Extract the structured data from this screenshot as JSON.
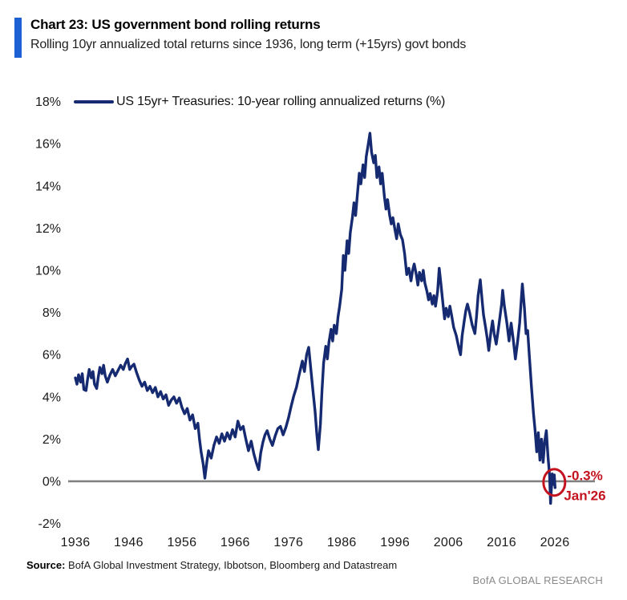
{
  "header": {
    "title": "Chart 23: US government bond rolling returns",
    "subtitle": "Rolling 10yr annualized total returns since 1936, long term (+15yrs) govt bonds"
  },
  "legend": {
    "label": "US 15yr+ Treasuries: 10-year rolling annualized returns (%)"
  },
  "footer": {
    "source_label": "Source:",
    "source_text": " BofA Global Investment Strategy, Ibbotson, Bloomberg and Datastream",
    "brand": "BofA GLOBAL RESEARCH"
  },
  "colors": {
    "line": "#152a70",
    "accent_bar": "#1c60d4",
    "annotation": "#c4121f",
    "zero_line": "#7f7f7f",
    "axis_text": "#1a1a1a",
    "brand_text": "#8a8a8a"
  },
  "chart_data": {
    "type": "line",
    "title": "US government bond rolling returns",
    "xlabel": "",
    "ylabel": "",
    "xlim": [
      1936,
      2027
    ],
    "ylim": [
      -2,
      18
    ],
    "grid": false,
    "legend_position": "top-left",
    "x_ticks": [
      1936,
      1946,
      1956,
      1966,
      1976,
      1986,
      1996,
      2006,
      2016,
      2026
    ],
    "y_tick_labels": [
      "18%",
      "16%",
      "14%",
      "12%",
      "10%",
      "8%",
      "6%",
      "4%",
      "2%",
      "0%",
      "-2%"
    ],
    "zero_line": true,
    "annotation": {
      "x_year": 2025.9,
      "y_value": -0.05,
      "value_label": "-0.3%",
      "date_label": "Jan'26"
    },
    "series": [
      {
        "name": "US 15yr+ Treasuries: 10-year rolling annualized returns (%)",
        "points": [
          [
            1936.0,
            4.9
          ],
          [
            1936.3,
            4.6
          ],
          [
            1936.6,
            5.05
          ],
          [
            1937.0,
            4.7
          ],
          [
            1937.3,
            5.1
          ],
          [
            1937.6,
            4.35
          ],
          [
            1938.0,
            4.3
          ],
          [
            1938.3,
            4.85
          ],
          [
            1938.6,
            5.3
          ],
          [
            1939.0,
            4.9
          ],
          [
            1939.3,
            5.2
          ],
          [
            1939.6,
            4.6
          ],
          [
            1940.0,
            4.4
          ],
          [
            1940.3,
            4.95
          ],
          [
            1940.6,
            5.4
          ],
          [
            1941.0,
            5.1
          ],
          [
            1941.3,
            5.5
          ],
          [
            1941.6,
            5.0
          ],
          [
            1942.0,
            4.7
          ],
          [
            1942.5,
            5.05
          ],
          [
            1943.0,
            5.3
          ],
          [
            1943.5,
            5.0
          ],
          [
            1944.0,
            5.25
          ],
          [
            1944.5,
            5.5
          ],
          [
            1945.0,
            5.3
          ],
          [
            1945.4,
            5.6
          ],
          [
            1945.8,
            5.8
          ],
          [
            1946.2,
            5.3
          ],
          [
            1946.6,
            5.45
          ],
          [
            1947.0,
            5.55
          ],
          [
            1947.5,
            5.15
          ],
          [
            1948.0,
            4.8
          ],
          [
            1948.5,
            4.5
          ],
          [
            1949.0,
            4.7
          ],
          [
            1949.5,
            4.3
          ],
          [
            1950.0,
            4.5
          ],
          [
            1950.5,
            4.2
          ],
          [
            1951.0,
            4.45
          ],
          [
            1951.5,
            4.0
          ],
          [
            1952.0,
            4.25
          ],
          [
            1952.5,
            3.9
          ],
          [
            1953.0,
            4.1
          ],
          [
            1953.5,
            3.6
          ],
          [
            1954.0,
            3.85
          ],
          [
            1954.5,
            4.0
          ],
          [
            1955.0,
            3.7
          ],
          [
            1955.5,
            3.95
          ],
          [
            1956.0,
            3.5
          ],
          [
            1956.5,
            3.2
          ],
          [
            1957.0,
            3.45
          ],
          [
            1957.5,
            2.9
          ],
          [
            1958.0,
            3.15
          ],
          [
            1958.5,
            2.5
          ],
          [
            1959.0,
            2.75
          ],
          [
            1959.3,
            2.0
          ],
          [
            1959.6,
            1.4
          ],
          [
            1960.0,
            0.8
          ],
          [
            1960.3,
            0.15
          ],
          [
            1960.7,
            0.95
          ],
          [
            1961.0,
            1.45
          ],
          [
            1961.5,
            1.1
          ],
          [
            1962.0,
            1.7
          ],
          [
            1962.5,
            2.1
          ],
          [
            1963.0,
            1.8
          ],
          [
            1963.5,
            2.25
          ],
          [
            1964.0,
            1.9
          ],
          [
            1964.5,
            2.3
          ],
          [
            1965.0,
            2.0
          ],
          [
            1965.5,
            2.45
          ],
          [
            1966.0,
            2.1
          ],
          [
            1966.5,
            2.85
          ],
          [
            1967.0,
            2.45
          ],
          [
            1967.5,
            2.6
          ],
          [
            1968.0,
            2.0
          ],
          [
            1968.5,
            1.45
          ],
          [
            1969.0,
            1.9
          ],
          [
            1969.5,
            1.3
          ],
          [
            1970.0,
            0.85
          ],
          [
            1970.4,
            0.55
          ],
          [
            1970.8,
            1.35
          ],
          [
            1971.2,
            1.85
          ],
          [
            1971.6,
            2.2
          ],
          [
            1972.0,
            2.4
          ],
          [
            1972.5,
            2.0
          ],
          [
            1973.0,
            1.7
          ],
          [
            1973.5,
            2.15
          ],
          [
            1974.0,
            2.5
          ],
          [
            1974.5,
            2.6
          ],
          [
            1975.0,
            2.2
          ],
          [
            1975.5,
            2.55
          ],
          [
            1976.0,
            3.0
          ],
          [
            1976.5,
            3.55
          ],
          [
            1977.0,
            4.05
          ],
          [
            1977.5,
            4.45
          ],
          [
            1978.0,
            5.05
          ],
          [
            1978.6,
            5.7
          ],
          [
            1979.0,
            5.2
          ],
          [
            1979.4,
            6.0
          ],
          [
            1979.8,
            6.35
          ],
          [
            1980.2,
            5.3
          ],
          [
            1980.6,
            4.3
          ],
          [
            1981.0,
            3.3
          ],
          [
            1981.3,
            2.3
          ],
          [
            1981.6,
            1.5
          ],
          [
            1982.0,
            2.7
          ],
          [
            1982.3,
            4.3
          ],
          [
            1982.6,
            5.6
          ],
          [
            1983.0,
            6.4
          ],
          [
            1983.3,
            5.8
          ],
          [
            1983.6,
            6.6
          ],
          [
            1984.0,
            7.2
          ],
          [
            1984.3,
            6.65
          ],
          [
            1984.6,
            7.4
          ],
          [
            1985.0,
            7.0
          ],
          [
            1985.3,
            7.8
          ],
          [
            1985.6,
            8.3
          ],
          [
            1986.0,
            9.1
          ],
          [
            1986.3,
            10.7
          ],
          [
            1986.6,
            10.0
          ],
          [
            1987.0,
            11.4
          ],
          [
            1987.3,
            10.8
          ],
          [
            1987.6,
            11.8
          ],
          [
            1988.0,
            12.5
          ],
          [
            1988.3,
            13.2
          ],
          [
            1988.6,
            12.6
          ],
          [
            1989.0,
            13.8
          ],
          [
            1989.3,
            14.6
          ],
          [
            1989.6,
            14.1
          ],
          [
            1990.0,
            15.0
          ],
          [
            1990.3,
            14.4
          ],
          [
            1990.6,
            15.4
          ],
          [
            1991.0,
            16.0
          ],
          [
            1991.3,
            16.5
          ],
          [
            1991.6,
            15.6
          ],
          [
            1992.0,
            15.1
          ],
          [
            1992.3,
            15.45
          ],
          [
            1992.6,
            14.4
          ],
          [
            1993.0,
            14.9
          ],
          [
            1993.3,
            14.1
          ],
          [
            1993.6,
            14.6
          ],
          [
            1994.0,
            13.5
          ],
          [
            1994.3,
            12.9
          ],
          [
            1994.6,
            13.35
          ],
          [
            1995.0,
            12.6
          ],
          [
            1995.3,
            12.2
          ],
          [
            1995.6,
            12.5
          ],
          [
            1996.0,
            11.9
          ],
          [
            1996.3,
            11.5
          ],
          [
            1996.6,
            12.2
          ],
          [
            1997.0,
            11.7
          ],
          [
            1997.4,
            11.45
          ],
          [
            1997.8,
            10.8
          ],
          [
            1998.2,
            9.8
          ],
          [
            1998.6,
            10.1
          ],
          [
            1999.0,
            9.5
          ],
          [
            1999.3,
            10.0
          ],
          [
            1999.6,
            10.3
          ],
          [
            2000.0,
            9.8
          ],
          [
            2000.3,
            9.3
          ],
          [
            2000.6,
            9.9
          ],
          [
            2001.0,
            9.5
          ],
          [
            2001.3,
            10.0
          ],
          [
            2001.6,
            9.4
          ],
          [
            2002.0,
            9.0
          ],
          [
            2002.3,
            8.6
          ],
          [
            2002.6,
            8.9
          ],
          [
            2003.0,
            8.4
          ],
          [
            2003.3,
            8.8
          ],
          [
            2003.6,
            8.3
          ],
          [
            2004.0,
            9.0
          ],
          [
            2004.3,
            10.1
          ],
          [
            2004.6,
            9.4
          ],
          [
            2005.0,
            8.4
          ],
          [
            2005.3,
            7.7
          ],
          [
            2005.6,
            8.2
          ],
          [
            2006.0,
            7.8
          ],
          [
            2006.3,
            8.3
          ],
          [
            2006.6,
            7.9
          ],
          [
            2007.0,
            7.3
          ],
          [
            2007.5,
            6.9
          ],
          [
            2008.0,
            6.3
          ],
          [
            2008.3,
            6.0
          ],
          [
            2008.6,
            6.9
          ],
          [
            2009.0,
            7.6
          ],
          [
            2009.3,
            8.1
          ],
          [
            2009.6,
            8.4
          ],
          [
            2010.0,
            8.0
          ],
          [
            2010.5,
            7.4
          ],
          [
            2011.0,
            7.0
          ],
          [
            2011.3,
            7.8
          ],
          [
            2011.6,
            8.8
          ],
          [
            2012.0,
            9.55
          ],
          [
            2012.3,
            8.7
          ],
          [
            2012.6,
            7.9
          ],
          [
            2013.0,
            7.3
          ],
          [
            2013.3,
            6.8
          ],
          [
            2013.6,
            6.2
          ],
          [
            2014.0,
            7.1
          ],
          [
            2014.3,
            7.6
          ],
          [
            2014.6,
            7.0
          ],
          [
            2015.0,
            6.5
          ],
          [
            2015.5,
            7.4
          ],
          [
            2016.0,
            8.4
          ],
          [
            2016.2,
            9.05
          ],
          [
            2016.5,
            8.35
          ],
          [
            2017.0,
            7.5
          ],
          [
            2017.4,
            6.65
          ],
          [
            2017.8,
            7.5
          ],
          [
            2018.2,
            6.7
          ],
          [
            2018.6,
            5.8
          ],
          [
            2019.0,
            6.6
          ],
          [
            2019.4,
            7.5
          ],
          [
            2019.9,
            9.35
          ],
          [
            2020.3,
            8.2
          ],
          [
            2020.6,
            7.0
          ],
          [
            2020.9,
            7.15
          ],
          [
            2021.2,
            6.0
          ],
          [
            2021.6,
            4.5
          ],
          [
            2022.0,
            3.2
          ],
          [
            2022.3,
            2.4
          ],
          [
            2022.6,
            1.4
          ],
          [
            2022.9,
            2.3
          ],
          [
            2023.2,
            1.0
          ],
          [
            2023.5,
            2.0
          ],
          [
            2023.8,
            0.9
          ],
          [
            2024.1,
            1.9
          ],
          [
            2024.4,
            2.4
          ],
          [
            2024.7,
            1.2
          ],
          [
            2025.0,
            0.3
          ],
          [
            2025.2,
            -1.05
          ],
          [
            2025.5,
            0.35
          ],
          [
            2025.7,
            -0.15
          ],
          [
            2025.9,
            0.3
          ],
          [
            2026.05,
            -0.3
          ]
        ]
      }
    ]
  }
}
